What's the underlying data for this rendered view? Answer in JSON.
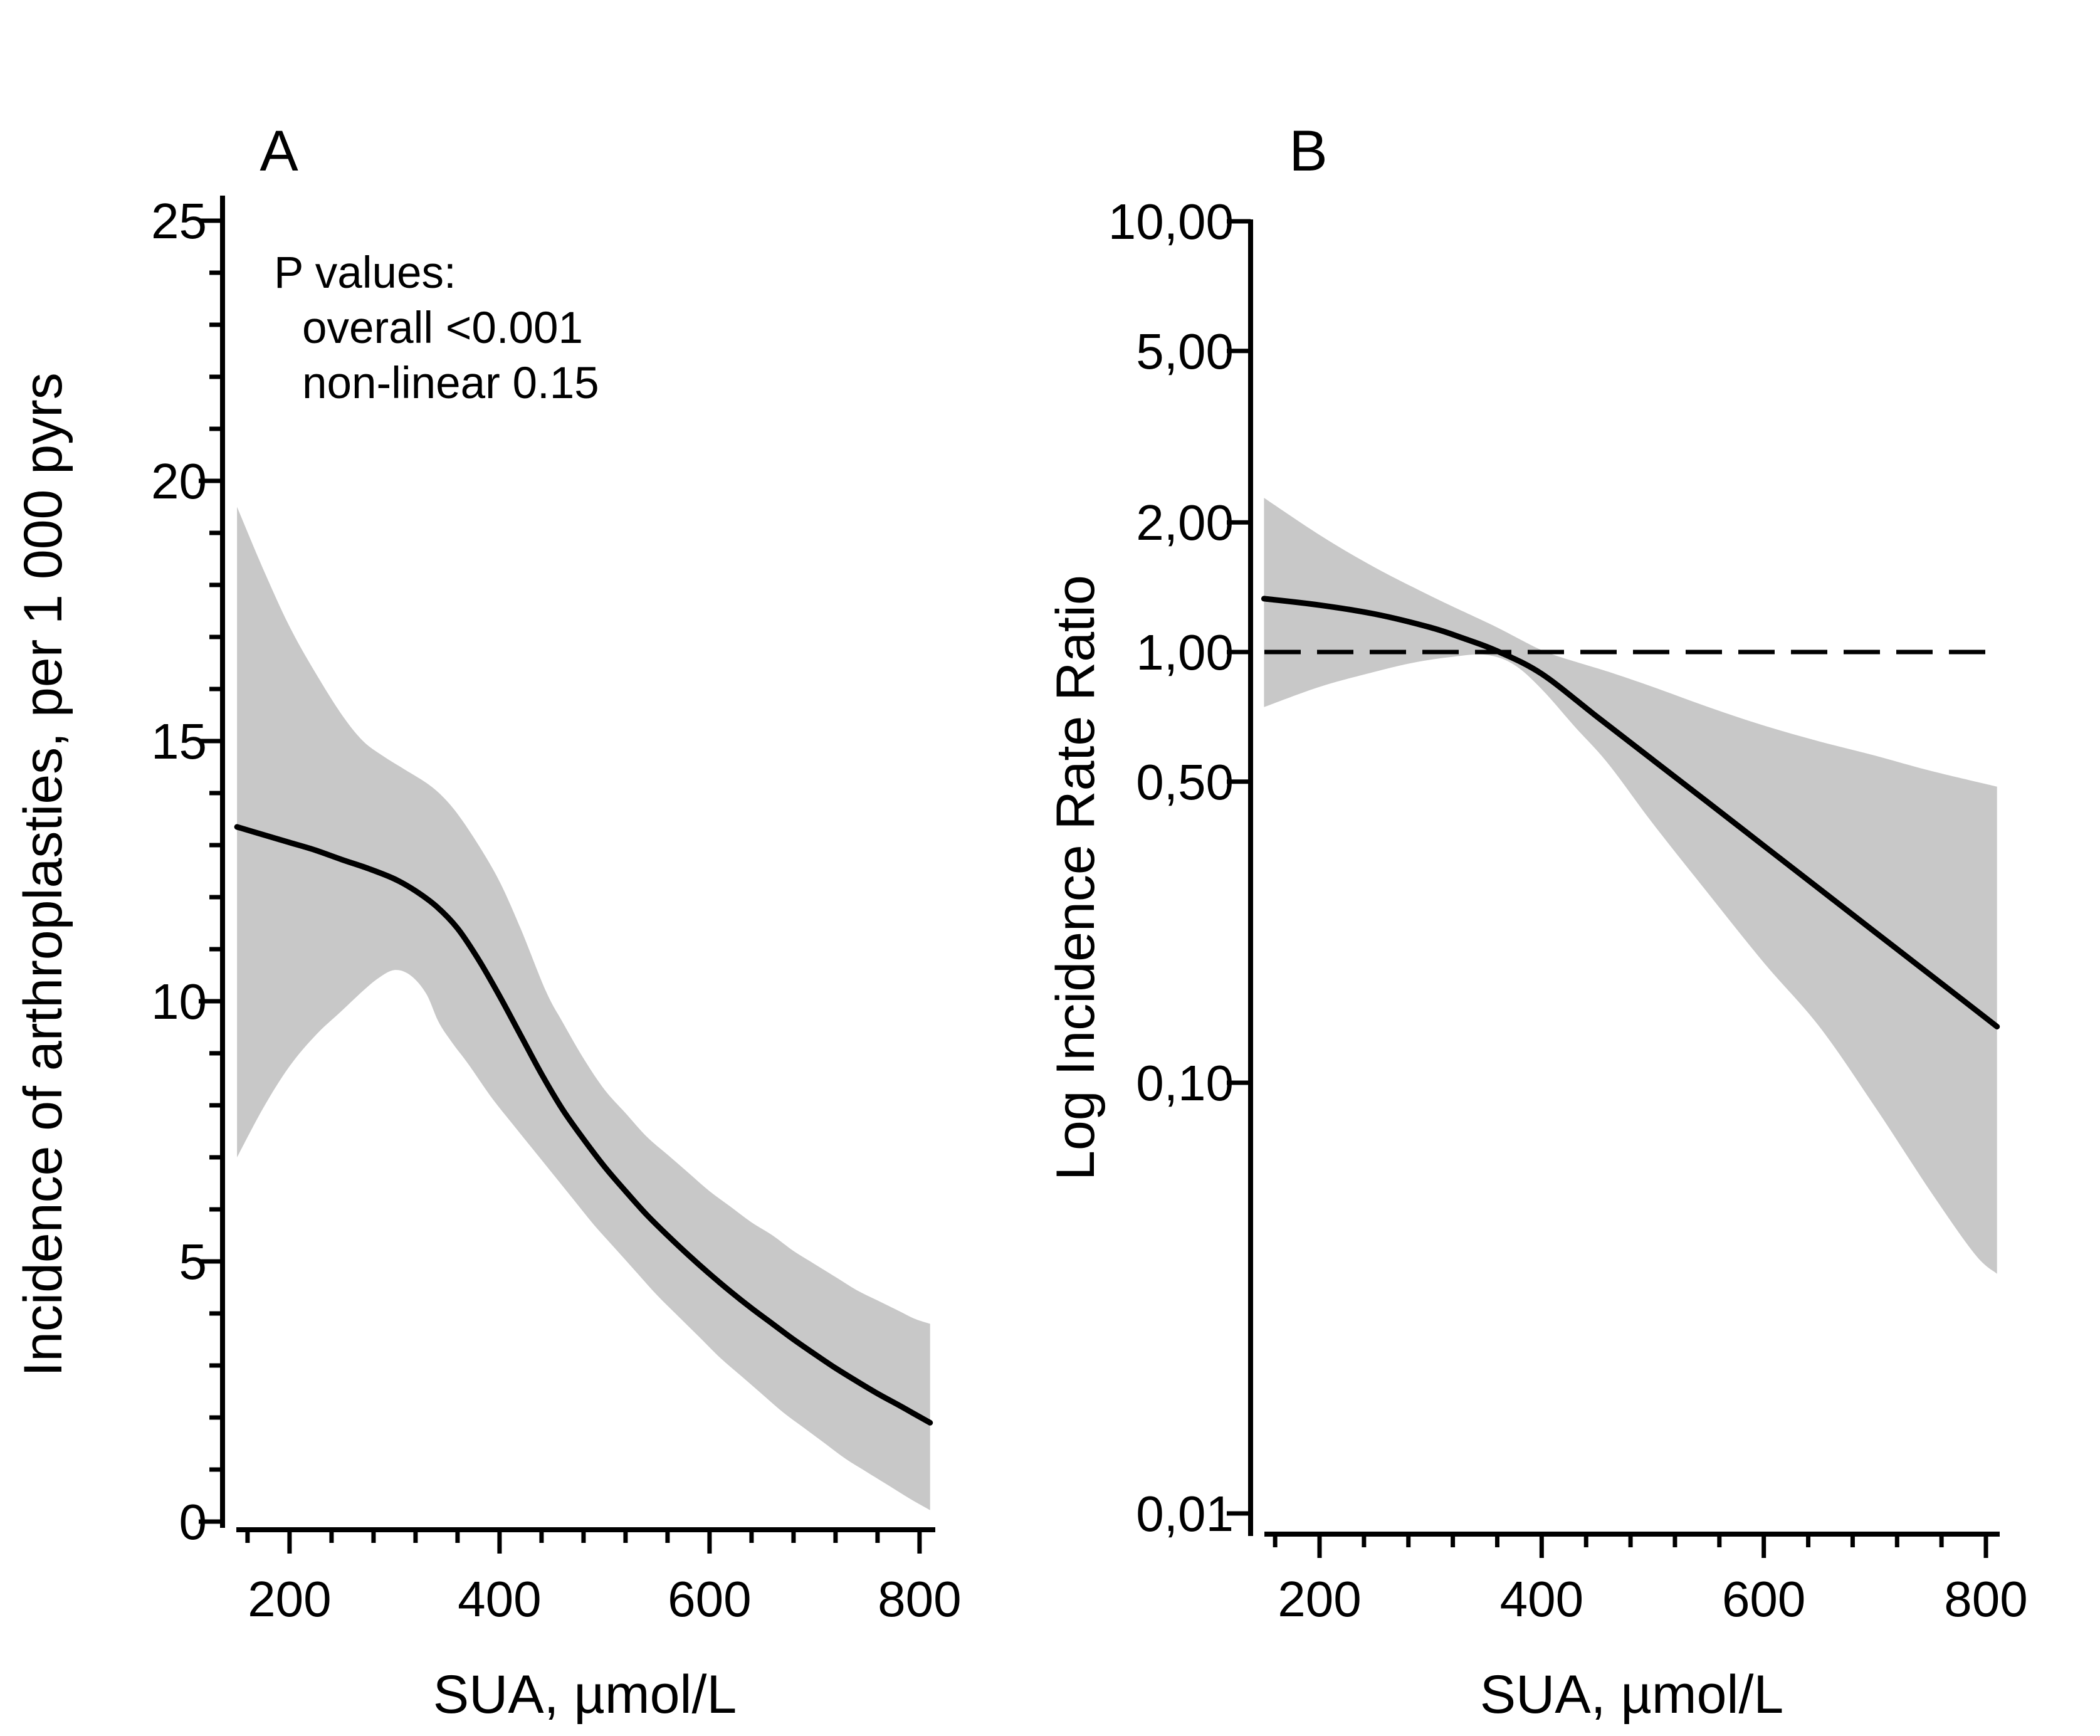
{
  "figure": {
    "background": "#ffffff",
    "line_color": "#000000",
    "band_color": "#c8c8c8"
  },
  "chart_data": [
    {
      "id": "A",
      "type": "line",
      "title": "A",
      "xlabel": "SUA, µmol/L",
      "ylabel": "Incidence of arthroplasties, per 1 000 pyrs",
      "y_scale": "linear",
      "xlim": [
        150,
        812
      ],
      "ylim": [
        0,
        25.6
      ],
      "x_ticks": [
        200,
        400,
        600,
        800
      ],
      "x_tick_labels": [
        "200",
        "400",
        "600",
        "800"
      ],
      "x_minor_step": 40,
      "y_ticks": [
        0,
        5,
        10,
        15,
        20,
        25
      ],
      "y_tick_labels": [
        "0",
        "5",
        "10",
        "15",
        "20",
        "25"
      ],
      "y_minor_step": 1,
      "grid": false,
      "legend": "none",
      "annotation": [
        "P values:",
        "overall <0.001",
        "non-linear 0.15"
      ],
      "series": [
        {
          "name": "incidence_spline",
          "style": "solid",
          "x": [
            150,
            175,
            200,
            225,
            250,
            275,
            300,
            320,
            340,
            360,
            380,
            400,
            420,
            440,
            460,
            480,
            500,
            520,
            540,
            560,
            580,
            600,
            620,
            640,
            660,
            680,
            700,
            720,
            740,
            760,
            780,
            795,
            810
          ],
          "y": [
            13.35,
            13.2,
            13.05,
            12.9,
            12.72,
            12.55,
            12.35,
            12.12,
            11.82,
            11.4,
            10.8,
            10.1,
            9.35,
            8.6,
            7.92,
            7.35,
            6.82,
            6.35,
            5.9,
            5.5,
            5.12,
            4.76,
            4.42,
            4.1,
            3.8,
            3.5,
            3.22,
            2.95,
            2.7,
            2.46,
            2.24,
            2.07,
            1.9
          ]
        },
        {
          "name": "ci_upper",
          "style": "band-edge",
          "x": [
            150,
            175,
            200,
            225,
            250,
            270,
            290,
            310,
            330,
            345,
            360,
            380,
            400,
            420,
            444,
            460,
            480,
            500,
            520,
            540,
            560,
            580,
            600,
            620,
            640,
            660,
            680,
            700,
            720,
            740,
            760,
            780,
            795,
            810
          ],
          "y": [
            19.5,
            18.3,
            17.2,
            16.3,
            15.5,
            15.0,
            14.7,
            14.45,
            14.2,
            13.95,
            13.6,
            13.0,
            12.3,
            11.4,
            10.2,
            9.6,
            8.9,
            8.3,
            7.85,
            7.4,
            7.05,
            6.7,
            6.35,
            6.05,
            5.75,
            5.5,
            5.2,
            4.95,
            4.7,
            4.45,
            4.25,
            4.05,
            3.9,
            3.8
          ]
        },
        {
          "name": "ci_lower",
          "style": "band-edge",
          "x": [
            150,
            175,
            200,
            225,
            250,
            270,
            285,
            300,
            315,
            330,
            342,
            355,
            370,
            392,
            410,
            430,
            450,
            470,
            490,
            510,
            530,
            550,
            570,
            590,
            610,
            630,
            650,
            670,
            690,
            710,
            730,
            750,
            770,
            790,
            810
          ],
          "y": [
            7.0,
            7.95,
            8.75,
            9.35,
            9.82,
            10.2,
            10.45,
            10.6,
            10.5,
            10.15,
            9.6,
            9.2,
            8.8,
            8.16,
            7.7,
            7.2,
            6.7,
            6.2,
            5.7,
            5.25,
            4.8,
            4.35,
            3.95,
            3.55,
            3.15,
            2.8,
            2.45,
            2.1,
            1.8,
            1.5,
            1.2,
            0.95,
            0.7,
            0.45,
            0.22
          ]
        }
      ]
    },
    {
      "id": "B",
      "type": "line",
      "title": "B",
      "xlabel": "SUA, µmol/L",
      "ylabel": "Log Incidence Rate Ratio",
      "y_scale": "log",
      "xlim": [
        150,
        812
      ],
      "ylim": [
        0.01,
        10
      ],
      "x_ticks": [
        200,
        400,
        600,
        800
      ],
      "x_tick_labels": [
        "200",
        "400",
        "600",
        "800"
      ],
      "x_minor_step": 40,
      "y_ticks": [
        10,
        5,
        2,
        1,
        0.5,
        0.1,
        0.01
      ],
      "y_tick_labels": [
        "10,00",
        "5,00",
        "2,00",
        "1,00",
        "0,50",
        "0,10",
        "0,01"
      ],
      "y_minor_step": null,
      "grid": false,
      "legend": "none",
      "reference_line": 1.0,
      "series": [
        {
          "name": "irr_spline",
          "style": "solid",
          "x": [
            150,
            200,
            250,
            300,
            330,
            360,
            400,
            450,
            500,
            550,
            600,
            650,
            700,
            750,
            810
          ],
          "y": [
            1.33,
            1.285,
            1.225,
            1.14,
            1.075,
            1.005,
            0.89,
            0.707,
            0.562,
            0.447,
            0.355,
            0.282,
            0.224,
            0.178,
            0.135
          ]
        },
        {
          "name": "ci_upper",
          "style": "band-edge",
          "x": [
            150,
            200,
            250,
            300,
            330,
            360,
            400,
            430,
            460,
            500,
            550,
            600,
            650,
            700,
            750,
            810
          ],
          "y": [
            2.28,
            1.87,
            1.57,
            1.35,
            1.24,
            1.14,
            1.01,
            0.95,
            0.9,
            0.83,
            0.745,
            0.675,
            0.62,
            0.575,
            0.53,
            0.487
          ]
        },
        {
          "name": "ci_lower",
          "style": "band-edge",
          "x": [
            150,
            200,
            250,
            285,
            320,
            350,
            375,
            400,
            430,
            460,
            500,
            550,
            600,
            650,
            700,
            750,
            790,
            810
          ],
          "y": [
            0.745,
            0.83,
            0.9,
            0.945,
            0.975,
            0.985,
            0.935,
            0.82,
            0.67,
            0.55,
            0.4,
            0.275,
            0.19,
            0.135,
            0.088,
            0.056,
            0.04,
            0.036
          ]
        }
      ]
    }
  ]
}
